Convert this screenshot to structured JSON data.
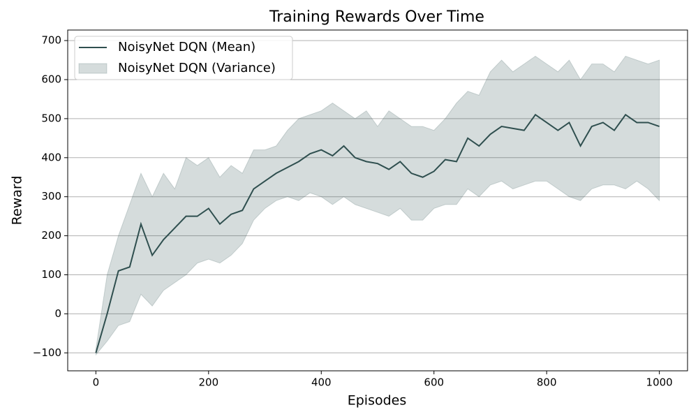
{
  "chart_data": {
    "type": "line",
    "title": "Training Rewards Over Time",
    "x_label": "Episodes",
    "y_label": "Reward",
    "x": [
      0,
      20,
      40,
      60,
      80,
      100,
      120,
      140,
      160,
      180,
      200,
      220,
      240,
      260,
      280,
      300,
      320,
      340,
      360,
      380,
      400,
      420,
      440,
      460,
      480,
      500,
      520,
      540,
      560,
      580,
      600,
      620,
      640,
      660,
      680,
      700,
      720,
      740,
      760,
      780,
      800,
      820,
      840,
      860,
      880,
      900,
      920,
      940,
      960,
      980,
      1000
    ],
    "series": [
      {
        "name": "NoisyNet DQN (Mean)",
        "color": "#2f4f4f",
        "values": [
          -100,
          0,
          110,
          120,
          230,
          150,
          190,
          220,
          250,
          250,
          270,
          230,
          255,
          265,
          320,
          340,
          360,
          375,
          390,
          410,
          420,
          405,
          430,
          400,
          390,
          385,
          370,
          390,
          360,
          350,
          365,
          395,
          390,
          450,
          430,
          460,
          480,
          475,
          470,
          510,
          490,
          470,
          490,
          430,
          480,
          490,
          470,
          510,
          490,
          490,
          480
        ]
      }
    ],
    "band": {
      "name": "NoisyNet DQN (Variance)",
      "color": "#2f4f4f",
      "alpha": 0.2,
      "upper": [
        -90,
        100,
        200,
        280,
        360,
        300,
        360,
        320,
        400,
        380,
        400,
        350,
        380,
        360,
        420,
        420,
        430,
        470,
        500,
        510,
        520,
        540,
        520,
        500,
        520,
        480,
        520,
        500,
        480,
        480,
        470,
        500,
        540,
        570,
        560,
        620,
        650,
        620,
        640,
        660,
        640,
        620,
        650,
        600,
        640,
        640,
        620,
        660,
        650,
        640,
        650
      ],
      "lower": [
        -105,
        -70,
        -30,
        -20,
        50,
        20,
        60,
        80,
        100,
        130,
        140,
        130,
        150,
        180,
        240,
        270,
        290,
        300,
        290,
        310,
        300,
        280,
        300,
        280,
        270,
        260,
        250,
        270,
        240,
        240,
        270,
        280,
        280,
        320,
        300,
        330,
        340,
        320,
        330,
        340,
        340,
        320,
        300,
        290,
        320,
        330,
        330,
        320,
        340,
        320,
        290
      ]
    },
    "xlim": [
      -50,
      1050
    ],
    "ylim": [
      -146,
      727
    ],
    "xticks": [
      0,
      200,
      400,
      600,
      800,
      1000
    ],
    "yticks": [
      {
        "value": -100,
        "label": "−100"
      },
      0,
      100,
      200,
      300,
      400,
      500,
      600,
      700
    ],
    "grid": "y",
    "legend": "upper left"
  }
}
